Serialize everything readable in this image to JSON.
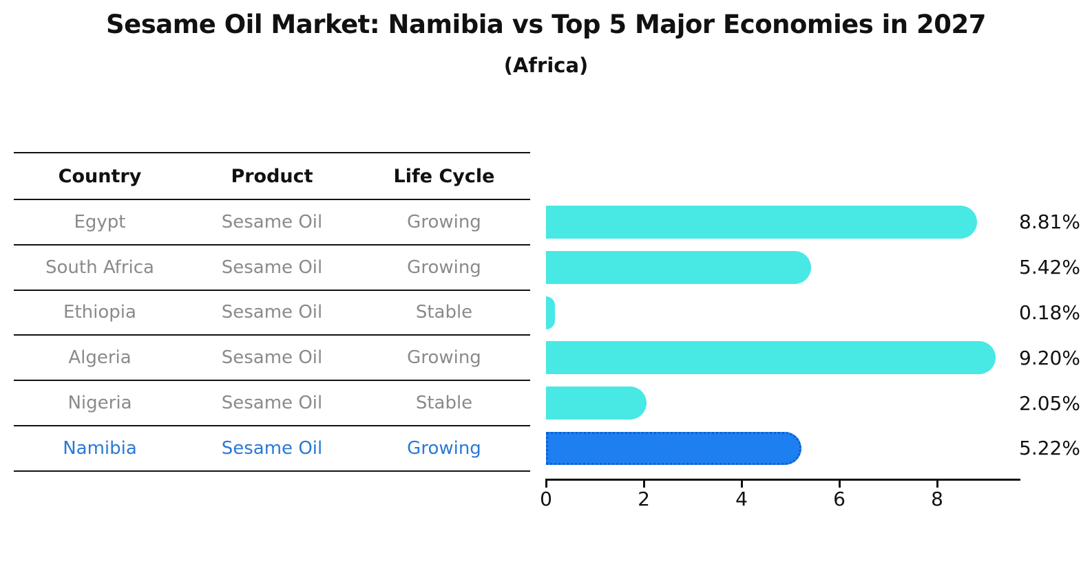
{
  "title": "Sesame Oil Market: Namibia vs Top 5 Major Economies in 2027",
  "subtitle": "(Africa)",
  "table": {
    "headers": [
      "Country",
      "Product",
      "Life Cycle"
    ],
    "rows": [
      {
        "country": "Egypt",
        "product": "Sesame Oil",
        "life_cycle": "Growing",
        "highlight": false
      },
      {
        "country": "South Africa",
        "product": "Sesame Oil",
        "life_cycle": "Growing",
        "highlight": false
      },
      {
        "country": "Ethiopia",
        "product": "Sesame Oil",
        "life_cycle": "Stable",
        "highlight": false
      },
      {
        "country": "Algeria",
        "product": "Sesame Oil",
        "life_cycle": "Growing",
        "highlight": false
      },
      {
        "country": "Nigeria",
        "product": "Sesame Oil",
        "life_cycle": "Stable",
        "highlight": false
      },
      {
        "country": "Namibia",
        "product": "Sesame Oil",
        "life_cycle": "Growing",
        "highlight": true
      }
    ]
  },
  "chart_data": {
    "type": "bar",
    "orientation": "horizontal",
    "title": "Sesame Oil Market: Namibia vs Top 5 Major Economies in 2027",
    "subtitle": "(Africa)",
    "categories": [
      "Egypt",
      "South Africa",
      "Ethiopia",
      "Algeria",
      "Nigeria",
      "Namibia"
    ],
    "values": [
      8.81,
      5.42,
      0.18,
      9.2,
      2.05,
      5.22
    ],
    "value_labels": [
      "8.81%",
      "5.42%",
      "0.18%",
      "9.20%",
      "2.05%",
      "5.22%"
    ],
    "xlabel": "",
    "ylabel": "",
    "xticks": [
      0,
      2,
      4,
      6,
      8
    ],
    "xlim": [
      0,
      9.7
    ],
    "grid": false,
    "legend": false,
    "highlight_index": 5,
    "colors": {
      "bar": "#48e8e4",
      "highlight_bar": "#1e7ff0",
      "highlight_border": "#0c5fd8",
      "highlight_text": "#2a79d6",
      "row_text": "#8a8a8a",
      "axis": "#111111"
    }
  }
}
